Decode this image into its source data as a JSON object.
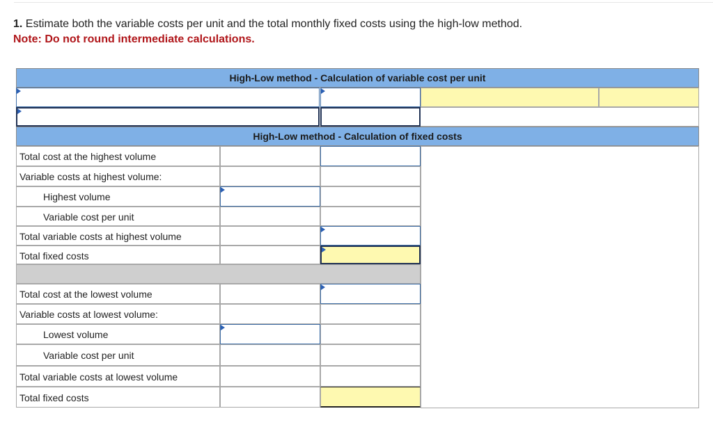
{
  "instructions": {
    "number": "1.",
    "text": " Estimate both the variable costs per unit and the total monthly fixed costs using the high-low method.",
    "note": "Note: Do not round intermediate calculations."
  },
  "worksheet": {
    "variable_header": "High-Low method - Calculation of variable cost per unit",
    "fixed_header": "High-Low method - Calculation of fixed costs",
    "high_section": {
      "total_cost": "Total cost at the highest volume",
      "variable_costs": "Variable costs at highest volume:",
      "volume": "Highest volume",
      "vc_per_unit": "Variable cost per unit",
      "total_variable": "Total variable costs at highest volume",
      "total_fixed": "Total fixed costs"
    },
    "low_section": {
      "total_cost": "Total cost at the lowest volume",
      "variable_costs": "Variable costs at lowest volume:",
      "volume": "Lowest volume",
      "vc_per_unit": "Variable cost per unit",
      "total_variable": "Total variable costs at lowest volume",
      "total_fixed": "Total fixed costs"
    },
    "colors": {
      "header": "#7fb0e6",
      "answer": "#fef9b0",
      "separator": "#cfcfcf",
      "input_border": "#3f6fa8"
    }
  }
}
